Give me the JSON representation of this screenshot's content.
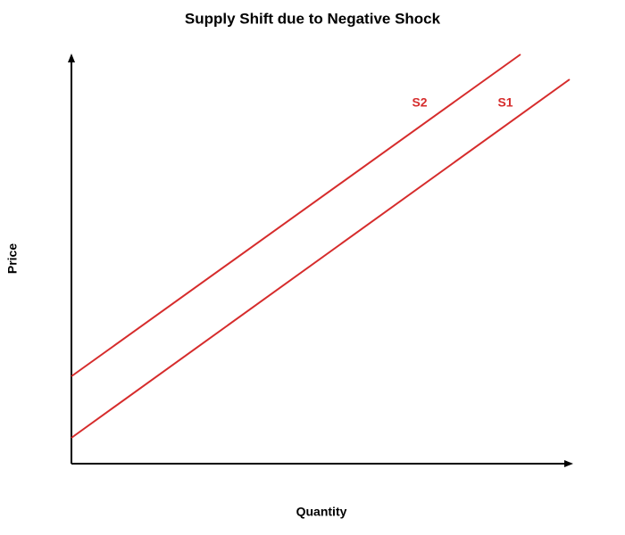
{
  "title": "Supply Shift due to Negative Shock",
  "x_label": "Quantity",
  "y_label": "Price",
  "curves": [
    {
      "label": "S1"
    },
    {
      "label": "S2"
    }
  ]
}
